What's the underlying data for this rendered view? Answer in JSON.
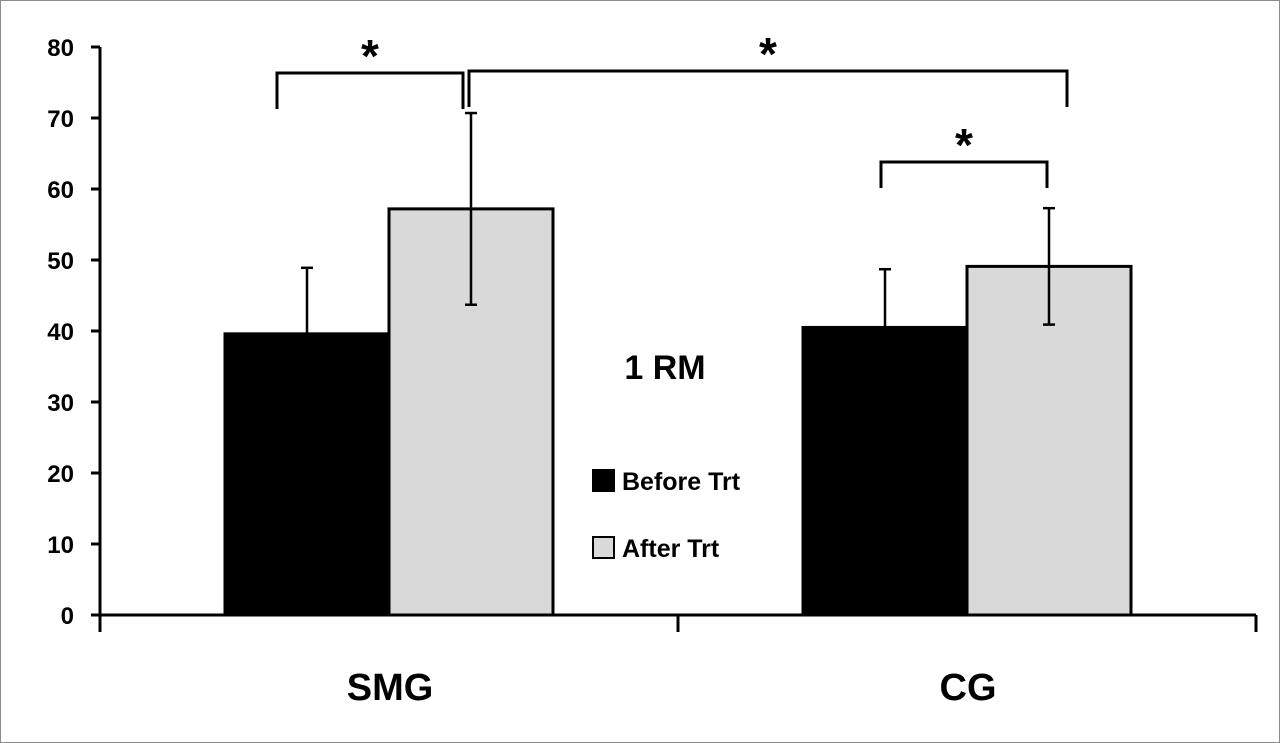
{
  "chart_data": {
    "type": "bar",
    "title": "1 RM",
    "xlabel": "",
    "ylabel": "",
    "categories": [
      "SMG",
      "CG"
    ],
    "ylim": [
      0,
      80
    ],
    "yticks": [
      0,
      10,
      20,
      30,
      40,
      50,
      60,
      70,
      80
    ],
    "grid": false,
    "legend_position": "center",
    "series": [
      {
        "name": "Before Trt",
        "color": "#000000",
        "values": [
          39.6,
          40.5
        ],
        "error": [
          9.3,
          8.2
        ]
      },
      {
        "name": "After Trt",
        "color": "#d9d9d9",
        "values": [
          57.2,
          49.1
        ],
        "error": [
          13.5,
          8.2
        ]
      }
    ],
    "significance": [
      {
        "label": "*",
        "from": "SMG Before Trt",
        "to": "SMG After Trt"
      },
      {
        "label": "*",
        "from": "SMG After Trt",
        "to": "CG After Trt"
      },
      {
        "label": "*",
        "from": "CG Before Trt",
        "to": "CG After Trt"
      }
    ]
  }
}
